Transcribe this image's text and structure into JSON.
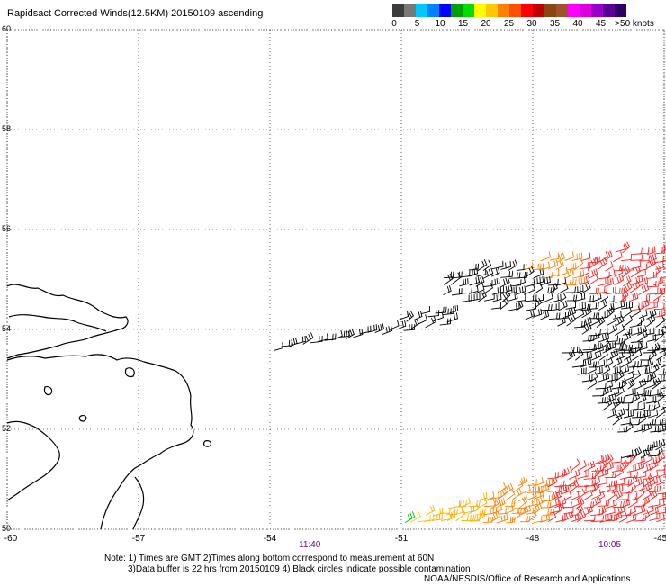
{
  "title": "Rapidsact Corrected Winds(12.5KM) 20150109 ascending",
  "colorbar": {
    "colors": [
      "#3c3c3c",
      "#787878",
      "#00c8ff",
      "#0082ff",
      "#0000ff",
      "#00a000",
      "#00dc00",
      "#ffff00",
      "#ffc800",
      "#ff8000",
      "#ff5000",
      "#ff0000",
      "#c00000",
      "#8b4513",
      "#a0522d",
      "#ff00ff",
      "#dc00dc",
      "#9600c8",
      "#5a0096",
      "#2d0064"
    ],
    "labels": [
      "0",
      "5",
      "10",
      "15",
      "20",
      "25",
      "30",
      "35",
      "40",
      "45",
      ">50 knots"
    ]
  },
  "axes": {
    "x_ticks": [
      "-60",
      "-57",
      "-54",
      "-51",
      "-48",
      "-45"
    ],
    "y_ticks": [
      "60",
      "58",
      "56",
      "54",
      "52",
      "50"
    ],
    "lon_range": [
      -60,
      -45
    ],
    "lat_range": [
      50,
      60
    ]
  },
  "times": [
    "11:40",
    "10:05"
  ],
  "notes": {
    "line1": "Note: 1) Times are GMT 2)Times along bottom correspond to measurement at 60N",
    "line2": "3)Data buffer is 22 hrs from 20150109 4) Black circles indicate possible contamination",
    "credit": "NOAA/NESDIS/Office of Research and Applications"
  }
}
